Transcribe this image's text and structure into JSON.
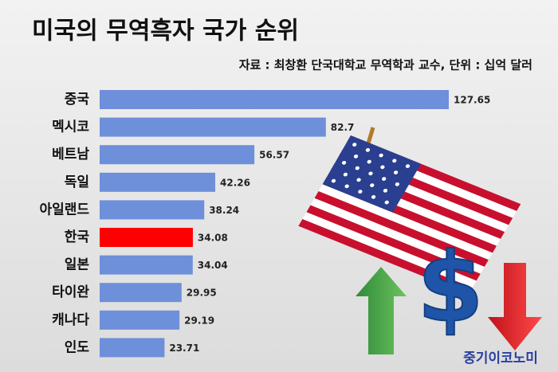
{
  "chart_data": {
    "type": "bar",
    "orientation": "horizontal",
    "title": "미국의 무역흑자 국가 순위",
    "subtitle": "자료 : 최창환 단국대학교 무역학과 교수, 단위 : 십억 달러",
    "categories": [
      "중국",
      "멕시코",
      "베트남",
      "독일",
      "아일랜드",
      "한국",
      "일본",
      "타이완",
      "캐나다",
      "인도"
    ],
    "values": [
      127.65,
      82.7,
      56.57,
      42.26,
      38.24,
      34.08,
      34.04,
      29.95,
      29.19,
      23.71
    ],
    "colors": [
      "#6e8fd9",
      "#6e8fd9",
      "#6e8fd9",
      "#6e8fd9",
      "#6e8fd9",
      "#ff0000",
      "#6e8fd9",
      "#6e8fd9",
      "#6e8fd9",
      "#6e8fd9"
    ],
    "watermark": "중기이코노미"
  }
}
